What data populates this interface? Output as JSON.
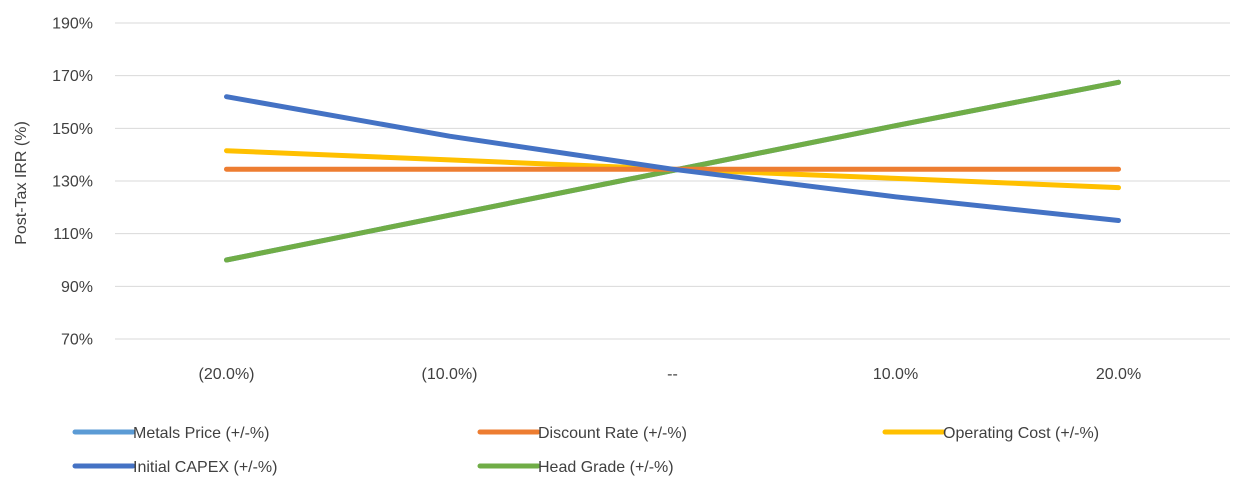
{
  "chart_data": {
    "type": "line",
    "title": "",
    "xlabel": "",
    "ylabel": "Post-Tax IRR (%)",
    "categories": [
      "(20.0%)",
      "(10.0%)",
      "--",
      "10.0%",
      "20.0%"
    ],
    "ylim": [
      70,
      190
    ],
    "yticks": [
      70,
      90,
      110,
      130,
      150,
      170,
      190
    ],
    "ytick_labels": [
      "70%",
      "90%",
      "110%",
      "130%",
      "150%",
      "170%",
      "190%"
    ],
    "grid": true,
    "legend_position": "bottom",
    "series": [
      {
        "name": "Metals Price (+/-%)",
        "color": "#5B9BD5",
        "values": [
          100,
          117,
          134,
          151,
          167.5
        ]
      },
      {
        "name": "Discount Rate (+/-%)",
        "color": "#ED7D31",
        "values": [
          134.5,
          134.5,
          134.5,
          134.5,
          134.5
        ]
      },
      {
        "name": "Operating Cost (+/-%)",
        "color": "#FFC000",
        "values": [
          141.5,
          138,
          134.5,
          131,
          127.5
        ]
      },
      {
        "name": "Initial CAPEX (+/-%)",
        "color": "#4472C4",
        "values": [
          162,
          147,
          134.5,
          124,
          115
        ]
      },
      {
        "name": "Head Grade (+/-%)",
        "color": "#70AD47",
        "values": [
          100,
          117,
          134,
          151,
          167.5
        ]
      }
    ]
  }
}
